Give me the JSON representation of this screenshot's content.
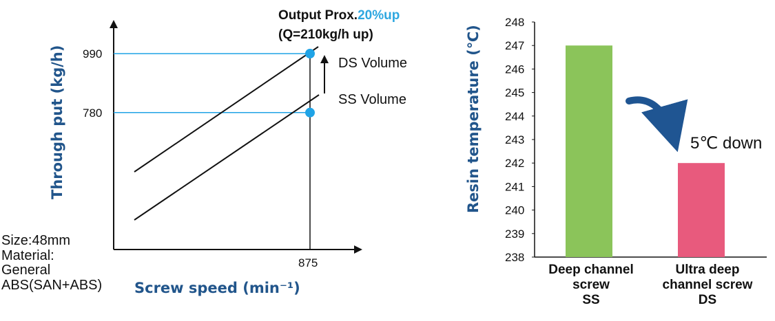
{
  "notes": {
    "size_material": "Size:48mm\nMaterial:\nGeneral\nABS(SAN+ABS)"
  },
  "chart_data": [
    {
      "type": "line",
      "xlabel": "Screw speed (min⁻¹)",
      "ylabel": "Through put (kg/h)",
      "x_ticks": [
        "875"
      ],
      "y_ticks": [
        "990",
        "780"
      ],
      "series": [
        {
          "name": "DS Volume",
          "x": [
            0,
            875
          ],
          "y": [
            610,
            990
          ]
        },
        {
          "name": "SS Volume",
          "x": [
            0,
            875
          ],
          "y": [
            400,
            780
          ]
        }
      ],
      "points": [
        {
          "x": 875,
          "y": 990
        },
        {
          "x": 875,
          "y": 780
        }
      ],
      "annotation": {
        "line1_prefix": "Output Prox.",
        "line1_highlight": "20%up",
        "line2": "(Q=210kg/h up)"
      },
      "colors": {
        "line": "#111111",
        "marker": "#1fa3e6",
        "guide": "#1fa3e6",
        "highlight": "#2ea7e0",
        "axis_title": "#21558b"
      }
    },
    {
      "type": "bar",
      "ylabel": "Resin temperature (℃)",
      "categories": [
        "Deep channel\nscrew\nSS",
        "Ultra deep\nchannel screw\nDS"
      ],
      "values": [
        247,
        242
      ],
      "ylim": [
        238,
        248
      ],
      "y_ticks": [
        "248",
        "247",
        "246",
        "245",
        "244",
        "243",
        "242",
        "241",
        "240",
        "239",
        "238"
      ],
      "annotation": "5℃  down",
      "colors": {
        "bars": [
          "#8bc45a",
          "#e85a7d"
        ],
        "arrow": "#1f5592",
        "axis_title": "#21558b"
      }
    }
  ]
}
